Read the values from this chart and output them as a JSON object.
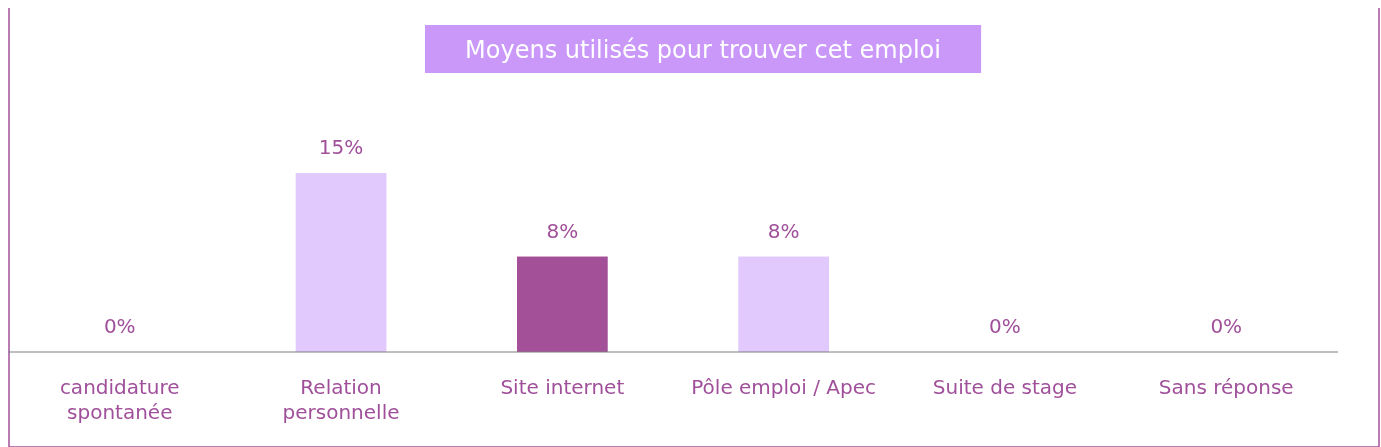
{
  "chart_data": {
    "type": "bar",
    "title": "Moyens utilisés pour trouver cet emploi",
    "categories": [
      "candidature spontanée",
      "Relation personnelle",
      "Site internet",
      "Pôle emploi / Apec",
      "Suite de stage",
      "Sans réponse"
    ],
    "values": [
      0,
      15,
      8,
      8,
      0,
      0
    ],
    "colors": [
      "#e2c9fd",
      "#e2c9fd",
      "#a35099",
      "#e2c9fd",
      "#e2c9fd",
      "#e2c9fd"
    ],
    "value_labels": [
      "0%",
      "15%",
      "8%",
      "8%",
      "0%",
      "0%"
    ]
  }
}
